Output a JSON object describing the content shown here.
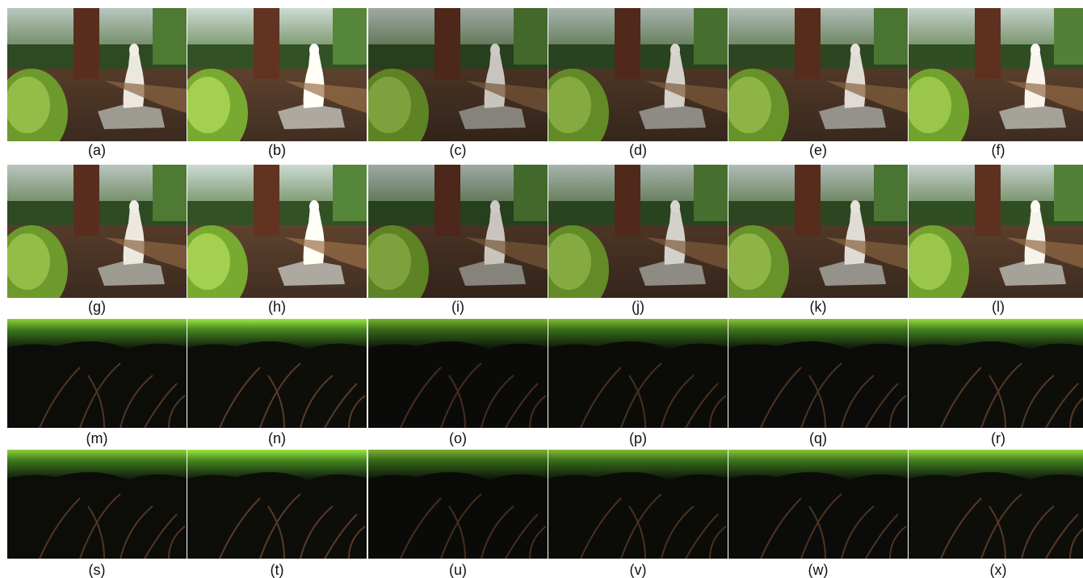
{
  "figure": {
    "labels": [
      "(a)",
      "(b)",
      "(c)",
      "(d)",
      "(e)",
      "(f)",
      "(g)",
      "(h)",
      "(i)",
      "(j)",
      "(k)",
      "(l)",
      "(m)",
      "(n)",
      "(o)",
      "(p)",
      "(q)",
      "(r)",
      "(s)",
      "(t)",
      "(u)",
      "(v)",
      "(w)",
      "(x)"
    ]
  }
}
